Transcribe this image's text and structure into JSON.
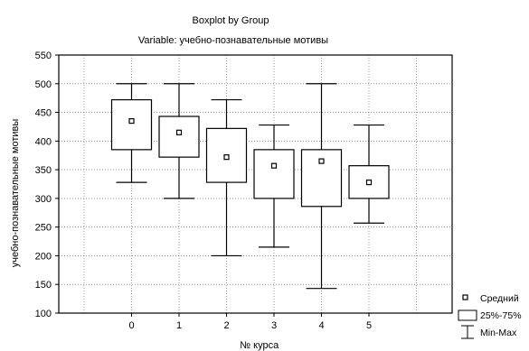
{
  "chart_data": {
    "type": "boxplot",
    "title": "Boxplot by Group",
    "subtitle": "Variable: учебно-познавательные мотивы",
    "xlabel": "№ курса",
    "ylabel": "учебно-познавательные мотивы",
    "categories": [
      "0",
      "1",
      "2",
      "3",
      "4",
      "5"
    ],
    "ylim": [
      100,
      550
    ],
    "yticks": [
      100,
      150,
      200,
      250,
      300,
      350,
      400,
      450,
      500,
      550
    ],
    "grid": true,
    "legend_position": "bottom-right",
    "legend": {
      "mean_label": "Средний",
      "box_label": "25%-75%",
      "whisker_label": "Min-Max"
    },
    "groups": [
      {
        "category": "0",
        "min": 328,
        "q1": 385,
        "mean": 435,
        "q3": 472,
        "max": 500
      },
      {
        "category": "1",
        "min": 300,
        "q1": 372,
        "mean": 415,
        "q3": 443,
        "max": 500
      },
      {
        "category": "2",
        "min": 200,
        "q1": 328,
        "mean": 372,
        "q3": 422,
        "max": 472
      },
      {
        "category": "3",
        "min": 215,
        "q1": 300,
        "mean": 357,
        "q3": 385,
        "max": 428
      },
      {
        "category": "4",
        "min": 143,
        "q1": 286,
        "mean": 365,
        "q3": 385,
        "max": 500
      },
      {
        "category": "5",
        "min": 257,
        "q1": 300,
        "mean": 328,
        "q3": 357,
        "max": 428
      }
    ]
  }
}
